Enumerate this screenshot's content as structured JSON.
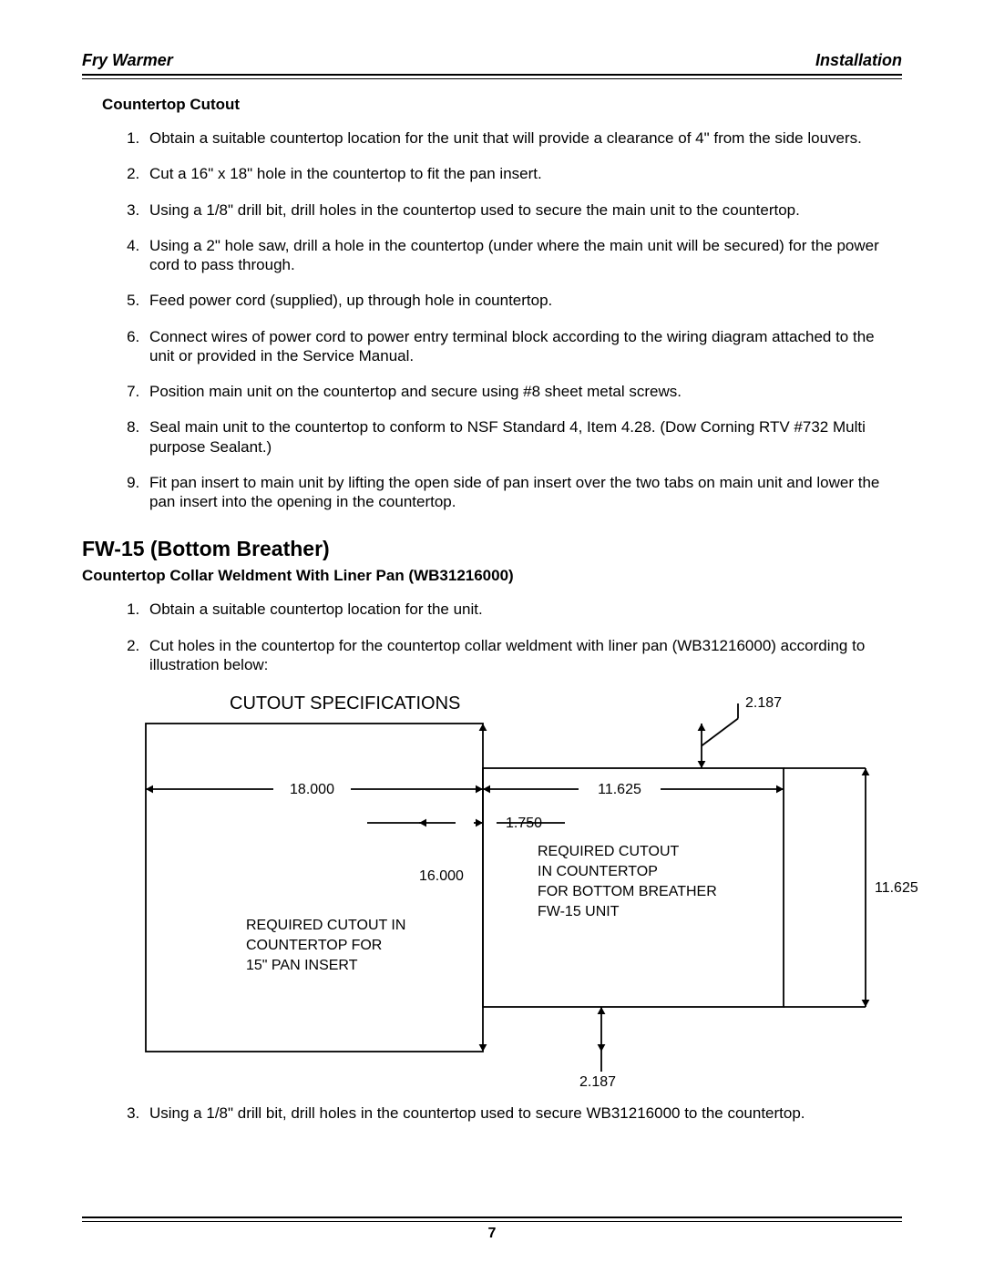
{
  "header": {
    "left": "Fry Warmer",
    "right": "Installation"
  },
  "page_number": "7",
  "cutout": {
    "heading": "Countertop Cutout",
    "items": [
      "Obtain a suitable countertop location for the unit that will provide a clearance of 4\" from the side louvers.",
      "Cut a 16\" x 18\" hole in the countertop to fit the pan insert.",
      "Using a 1/8\" drill bit, drill holes in the countertop used to secure the main unit to the countertop.",
      "Using a 2\" hole saw, drill a hole in the countertop (under where the main unit will be secured) for the power cord to pass through.",
      "Feed power cord (supplied), up through hole in countertop.",
      "Connect wires of power cord to power entry terminal block according to the wiring diagram attached to the unit or provided in the Service Manual.",
      "Position main unit on the countertop and secure using #8 sheet metal screws.",
      "Seal main unit to the countertop to conform to NSF Standard 4, Item 4.28. (Dow Corning RTV #732 Multi purpose Sealant.)",
      "Fit pan insert to main unit by lifting the open side of pan insert over the two tabs on main unit and lower the pan insert into the opening in the countertop."
    ]
  },
  "fw15": {
    "heading": "FW-15 (Bottom Breather)",
    "subheading": "Countertop Collar Weldment With Liner Pan (WB31216000)",
    "items": [
      "Obtain a suitable countertop location for the unit.",
      "Cut holes in the countertop for the countertop collar weldment with liner pan (WB31216000) according to illustration below:",
      "Using a 1/8\" drill bit, drill holes in the countertop used to secure WB31216000 to the countertop."
    ]
  },
  "diagram": {
    "title": "CUTOUT SPECIFICATIONS",
    "left_box": {
      "width_label": "18.000",
      "height_label": "16.000",
      "text_lines": [
        "REQUIRED CUTOUT IN",
        "COUNTERTOP FOR",
        "15\" PAN INSERT"
      ]
    },
    "right_box": {
      "width_label": "11.625",
      "height_label": "11.625",
      "top_offset_label": "2.187",
      "bottom_offset_label": "2.187",
      "side_offset_label": "1.750",
      "text_lines": [
        "REQUIRED CUTOUT",
        "IN COUNTERTOP",
        "FOR BOTTOM BREATHER",
        "FW-15 UNIT"
      ]
    },
    "style": {
      "stroke": "#000000",
      "stroke_width": 1.8,
      "arrow_size": 8,
      "font_size_title": 20,
      "font_size_dim": 16,
      "font_size_body": 16
    }
  }
}
